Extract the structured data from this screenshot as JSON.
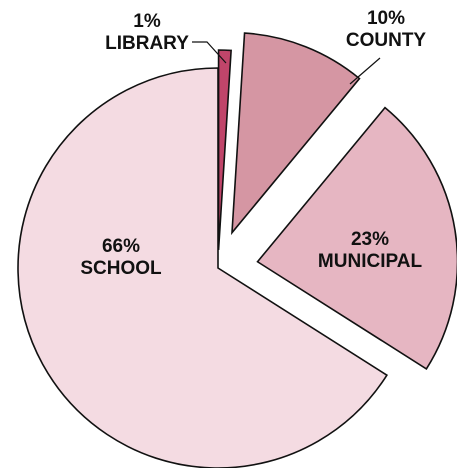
{
  "chart_data": {
    "type": "pie",
    "slices": [
      {
        "label": "LIBRARY",
        "percent_label": "1%",
        "value": 1,
        "color": "#c0456a"
      },
      {
        "label": "COUNTY",
        "percent_label": "10%",
        "value": 10,
        "color": "#d596a3"
      },
      {
        "label": "MUNICIPAL",
        "percent_label": "23%",
        "value": 23,
        "color": "#e6b6c2"
      },
      {
        "label": "SCHOOL",
        "percent_label": "66%",
        "value": 66,
        "color": "#f4dbe2"
      }
    ],
    "exploded": [
      "LIBRARY",
      "COUNTY",
      "MUNICIPAL"
    ]
  }
}
